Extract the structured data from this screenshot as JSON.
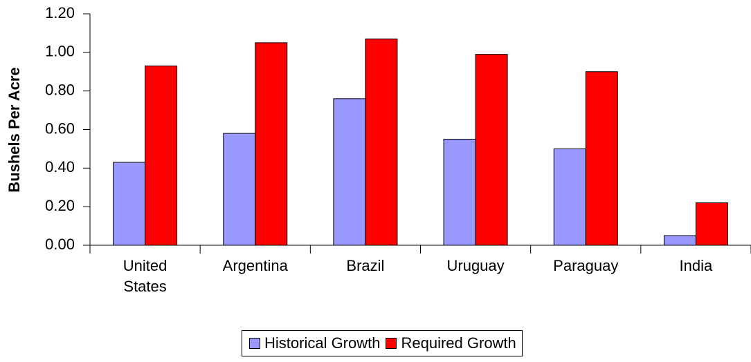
{
  "chart_data": {
    "type": "bar",
    "y_label": "Bushels Per Acre",
    "categories": [
      "United States",
      "Argentina",
      "Brazil",
      "Uruguay",
      "Paraguay",
      "India"
    ],
    "series": [
      {
        "name": "Historical Growth",
        "color": "#9999ff",
        "values": [
          0.43,
          0.58,
          0.76,
          0.55,
          0.5,
          0.05
        ]
      },
      {
        "name": "Required Growth",
        "color": "#ff0000",
        "values": [
          0.93,
          1.05,
          1.07,
          0.99,
          0.9,
          0.22
        ]
      }
    ],
    "ylim": [
      0,
      1.2
    ],
    "yticks": [
      {
        "value": 0,
        "label": "0.00"
      },
      {
        "value": 0.2,
        "label": "0.20"
      },
      {
        "value": 0.4,
        "label": "0.40"
      },
      {
        "value": 0.6,
        "label": "0.60"
      },
      {
        "value": 0.8,
        "label": "0.80"
      },
      {
        "value": 1.0,
        "label": "1.00"
      },
      {
        "value": 1.2,
        "label": "1.20"
      }
    ],
    "grid": false,
    "legend": "bottom"
  }
}
